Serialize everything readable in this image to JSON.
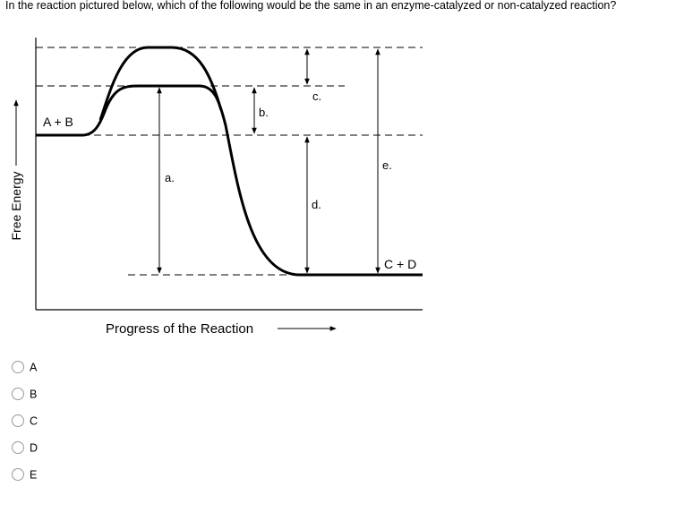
{
  "question": "In the reaction pictured below, which of the following would be the same in an enzyme-catalyzed or non-catalyzed reaction?",
  "diagram": {
    "y_axis_label": "Free Energy",
    "x_axis_label": "Progress of the Reaction",
    "reactants": "A + B",
    "products": "C + D",
    "labels": [
      "a.",
      "b.",
      "c.",
      "d.",
      "e."
    ]
  },
  "options": [
    "A",
    "B",
    "C",
    "D",
    "E"
  ]
}
